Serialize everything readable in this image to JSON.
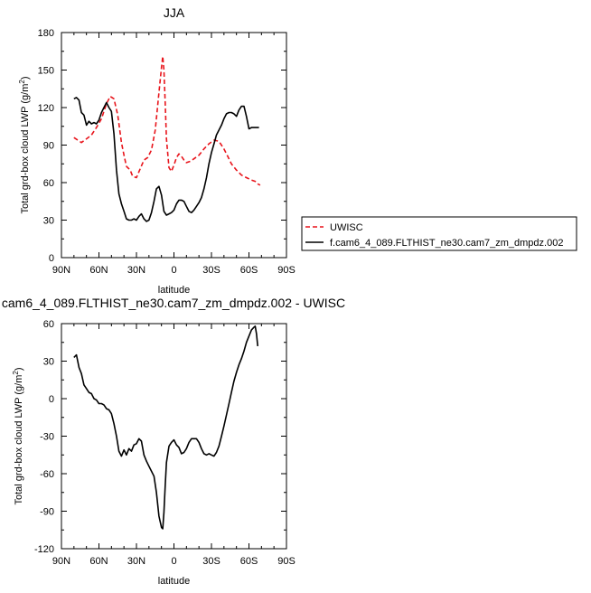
{
  "chart_data": [
    {
      "type": "line",
      "title": "JJA",
      "xlabel": "latitude",
      "ylabel": "Total grd-box cloud LWP (g/m",
      "ylabel_sup": "2",
      "ylabel_end": ")",
      "xlim": [
        90,
        -90
      ],
      "ylim": [
        0,
        180
      ],
      "x_ticks": [
        90,
        60,
        30,
        0,
        -30,
        -60,
        -90
      ],
      "x_tick_labels": [
        "90N",
        "60N",
        "30N",
        "0",
        "30S",
        "60S",
        "90S"
      ],
      "y_ticks": [
        0,
        30,
        60,
        90,
        120,
        150,
        180
      ],
      "y_tick_labels": [
        "0",
        "30",
        "60",
        "90",
        "120",
        "150",
        "180"
      ],
      "series": [
        {
          "name": "UWISC",
          "color": "#e8141b",
          "style": "dashed",
          "x": [
            80,
            77,
            74,
            70,
            66,
            62,
            58,
            54,
            51,
            48,
            45,
            42,
            40,
            38,
            35,
            33,
            30,
            27,
            24,
            21,
            18,
            15,
            12,
            10,
            9,
            8,
            7,
            6,
            4,
            2,
            0,
            -2,
            -4,
            -6,
            -8,
            -10,
            -13,
            -16,
            -20,
            -24,
            -28,
            -32,
            -36,
            -40,
            -43,
            -46,
            -50,
            -54,
            -58,
            -62,
            -65,
            -67,
            -69
          ],
          "y": [
            96,
            94,
            92,
            95,
            98,
            104,
            111,
            123,
            129,
            127,
            114,
            92,
            82,
            73,
            70,
            65,
            64,
            71,
            78,
            80,
            86,
            102,
            132,
            152,
            161,
            150,
            124,
            95,
            72,
            69,
            74,
            80,
            83,
            81,
            78,
            76,
            77,
            79,
            82,
            87,
            91,
            94,
            93,
            87,
            81,
            75,
            70,
            66,
            64,
            62,
            61,
            59,
            58
          ]
        },
        {
          "name": "f.cam6_4_089.FLTHIST_ne30.cam7_zm_dmpdz.002",
          "color": "#000000",
          "style": "solid",
          "x": [
            80,
            78,
            76,
            74,
            72,
            70,
            68,
            66,
            64,
            62,
            60,
            58,
            56,
            54,
            52,
            50,
            48,
            46,
            44,
            42,
            40,
            38,
            36,
            34,
            32,
            30,
            28,
            26,
            24,
            22,
            20,
            18,
            16,
            14,
            12,
            10,
            8,
            6,
            4,
            2,
            0,
            -2,
            -4,
            -6,
            -8,
            -10,
            -12,
            -14,
            -16,
            -18,
            -20,
            -22,
            -24,
            -26,
            -28,
            -30,
            -32,
            -34,
            -36,
            -38,
            -40,
            -42,
            -44,
            -46,
            -48,
            -50,
            -52,
            -54,
            -56,
            -58,
            -60,
            -62,
            -64,
            -66,
            -67,
            -68
          ],
          "y": [
            127,
            128,
            126,
            116,
            114,
            106,
            109,
            107,
            108,
            107,
            110,
            116,
            120,
            124,
            120,
            117,
            99,
            70,
            51,
            43,
            37,
            31,
            30,
            30,
            31,
            30,
            33,
            35,
            31,
            29,
            30,
            36,
            45,
            55,
            57,
            50,
            37,
            34,
            35,
            36,
            38,
            43,
            46,
            46,
            45,
            41,
            37,
            36,
            38,
            41,
            44,
            48,
            55,
            64,
            75,
            84,
            91,
            98,
            102,
            106,
            111,
            115,
            116,
            116,
            115,
            113,
            118,
            121,
            121,
            113,
            103,
            104,
            104,
            104,
            104,
            104
          ]
        }
      ],
      "legend": "right"
    },
    {
      "type": "line",
      "title": "cam6_4_089.FLTHIST_ne30.cam7_zm_dmpdz.002 - UWISC",
      "xlabel": "latitude",
      "ylabel": "Total grd-box cloud LWP (g/m",
      "ylabel_sup": "2",
      "ylabel_end": ")",
      "xlim": [
        90,
        -90
      ],
      "ylim": [
        -120,
        60
      ],
      "x_ticks": [
        90,
        60,
        30,
        0,
        -30,
        -60,
        -90
      ],
      "x_tick_labels": [
        "90N",
        "60N",
        "30N",
        "0",
        "30S",
        "60S",
        "90S"
      ],
      "y_ticks": [
        -120,
        -90,
        -60,
        -30,
        0,
        30,
        60
      ],
      "y_tick_labels": [
        "-120",
        "-90",
        "-60",
        "-30",
        "0",
        "30",
        "60"
      ],
      "series": [
        {
          "color": "#000000",
          "style": "solid",
          "x": [
            80,
            78,
            76,
            74,
            72,
            70,
            68,
            66,
            64,
            62,
            60,
            58,
            56,
            54,
            52,
            50,
            48,
            46,
            44,
            42,
            40,
            38,
            36,
            34,
            32,
            30,
            28,
            26,
            24,
            22,
            20,
            18,
            16,
            14,
            12,
            10,
            9,
            8,
            7,
            6,
            4,
            2,
            0,
            -2,
            -4,
            -6,
            -8,
            -10,
            -12,
            -14,
            -16,
            -18,
            -20,
            -22,
            -24,
            -26,
            -28,
            -30,
            -32,
            -34,
            -36,
            -38,
            -40,
            -42,
            -44,
            -46,
            -48,
            -50,
            -52,
            -54,
            -56,
            -58,
            -60,
            -62,
            -64,
            -65,
            -66,
            -67
          ],
          "y": [
            33,
            35,
            25,
            20,
            11,
            8,
            5,
            4,
            0,
            -1,
            -4,
            -4,
            -5,
            -8,
            -9,
            -12,
            -20,
            -30,
            -42,
            -46,
            -41,
            -45,
            -40,
            -42,
            -37,
            -36,
            -32,
            -34,
            -45,
            -50,
            -54,
            -58,
            -62,
            -75,
            -94,
            -103,
            -104,
            -91,
            -70,
            -51,
            -38,
            -35,
            -33,
            -37,
            -39,
            -44,
            -43,
            -40,
            -35,
            -32,
            -32,
            -32,
            -35,
            -40,
            -44,
            -45,
            -44,
            -45,
            -46,
            -43,
            -38,
            -30,
            -22,
            -13,
            -4,
            5,
            14,
            21,
            27,
            32,
            38,
            45,
            50,
            55,
            57,
            58,
            52,
            42
          ]
        }
      ]
    }
  ]
}
